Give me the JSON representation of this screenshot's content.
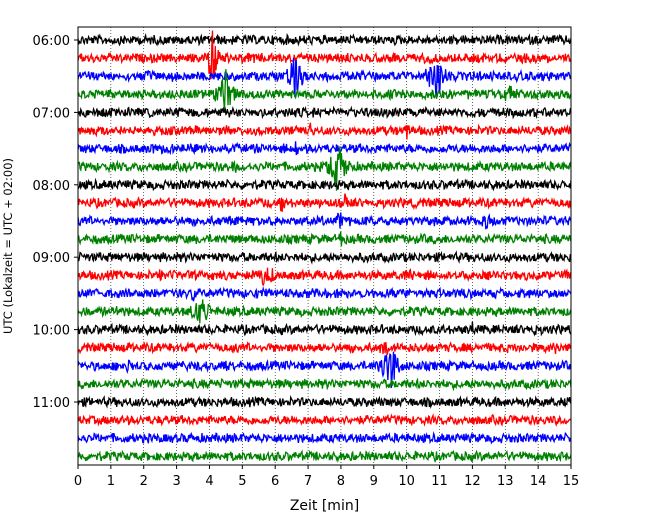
{
  "chart_data": {
    "type": "line",
    "title": "",
    "xlabel": "Zeit  [min]",
    "ylabel": "UTC (Lokalzeit = UTC + 02:00)",
    "xlim": [
      0,
      15
    ],
    "x_ticks": [
      0,
      1,
      2,
      3,
      4,
      5,
      6,
      7,
      8,
      9,
      10,
      11,
      12,
      13,
      14,
      15
    ],
    "y_tick_labels": [
      "06:00",
      "07:00",
      "08:00",
      "09:00",
      "10:00",
      "11:00"
    ],
    "y_tick_hours": [
      6,
      7,
      8,
      9,
      10,
      11
    ],
    "row_minutes": 15,
    "start_time": "05:45",
    "grid": "vertical-dotted",
    "colors": [
      "#000000",
      "#ff0000",
      "#0000ff",
      "#008000"
    ],
    "rows": [
      {
        "time": "06:00",
        "events": []
      },
      {
        "time": "06:15",
        "events": [
          {
            "x": 4.1,
            "amp": 2.8,
            "dur": 0.4
          }
        ]
      },
      {
        "time": "06:30",
        "events": [
          {
            "x": 6.6,
            "amp": 2.6,
            "dur": 0.4
          },
          {
            "x": 10.9,
            "amp": 2.6,
            "dur": 0.5
          },
          {
            "x": 2.85,
            "amp": 0.9,
            "dur": 0.05
          }
        ]
      },
      {
        "time": "06:45",
        "events": [
          {
            "x": 4.5,
            "amp": 2.4,
            "dur": 0.5
          },
          {
            "x": 8.1,
            "amp": 0.9,
            "dur": 0.1
          },
          {
            "x": 13.1,
            "amp": 0.9,
            "dur": 0.3
          }
        ]
      },
      {
        "time": "07:00",
        "events": []
      },
      {
        "time": "07:15",
        "events": [
          {
            "x": 7.1,
            "amp": 0.9,
            "dur": 0.1
          },
          {
            "x": 10.0,
            "amp": 0.6,
            "dur": 0.1
          }
        ]
      },
      {
        "time": "07:30",
        "events": [
          {
            "x": 6.6,
            "amp": 1.2,
            "dur": 0.2
          },
          {
            "x": 2.3,
            "amp": 0.6,
            "dur": 0.1
          }
        ]
      },
      {
        "time": "07:45",
        "events": [
          {
            "x": 7.9,
            "amp": 2.8,
            "dur": 0.5
          },
          {
            "x": 4.7,
            "amp": 0.7,
            "dur": 0.2
          }
        ]
      },
      {
        "time": "08:00",
        "events": []
      },
      {
        "time": "08:15",
        "events": [
          {
            "x": 8.1,
            "amp": 1.2,
            "dur": 0.2
          },
          {
            "x": 6.2,
            "amp": 0.8,
            "dur": 0.2
          },
          {
            "x": 5.5,
            "amp": 0.6,
            "dur": 0.1
          }
        ]
      },
      {
        "time": "08:30",
        "events": [
          {
            "x": 8.0,
            "amp": 1.6,
            "dur": 0.2
          },
          {
            "x": 12.4,
            "amp": 0.6,
            "dur": 0.2
          }
        ]
      },
      {
        "time": "08:45",
        "events": [
          {
            "x": 8.0,
            "amp": 0.8,
            "dur": 0.1
          }
        ]
      },
      {
        "time": "09:00",
        "events": []
      },
      {
        "time": "09:15",
        "events": [
          {
            "x": 5.7,
            "amp": 1.3,
            "dur": 0.4
          },
          {
            "x": 2.5,
            "amp": 0.6,
            "dur": 0.1
          },
          {
            "x": 10.1,
            "amp": 0.6,
            "dur": 0.2
          }
        ]
      },
      {
        "time": "09:30",
        "events": [
          {
            "x": 3.5,
            "amp": 1.2,
            "dur": 0.1
          },
          {
            "x": 5.4,
            "amp": 0.6,
            "dur": 0.1
          }
        ]
      },
      {
        "time": "09:45",
        "events": [
          {
            "x": 3.7,
            "amp": 1.6,
            "dur": 0.5
          },
          {
            "x": 1.2,
            "amp": 0.6,
            "dur": 0.1
          }
        ]
      },
      {
        "time": "10:00",
        "events": [
          {
            "x": 12.0,
            "amp": 0.7,
            "dur": 0.1
          },
          {
            "x": 13.9,
            "amp": 0.7,
            "dur": 0.1
          }
        ]
      },
      {
        "time": "10:15",
        "events": [
          {
            "x": 9.3,
            "amp": 1.2,
            "dur": 0.2
          },
          {
            "x": 14.5,
            "amp": 0.7,
            "dur": 0.1
          }
        ]
      },
      {
        "time": "10:30",
        "events": [
          {
            "x": 9.5,
            "amp": 2.8,
            "dur": 0.5
          },
          {
            "x": 1.5,
            "amp": 0.7,
            "dur": 0.1
          },
          {
            "x": 4.5,
            "amp": 0.6,
            "dur": 0.1
          }
        ]
      },
      {
        "time": "10:45",
        "events": []
      },
      {
        "time": "11:00",
        "events": []
      },
      {
        "time": "11:15",
        "events": []
      },
      {
        "time": "11:30",
        "events": []
      },
      {
        "time": "11:45",
        "events": []
      }
    ]
  }
}
